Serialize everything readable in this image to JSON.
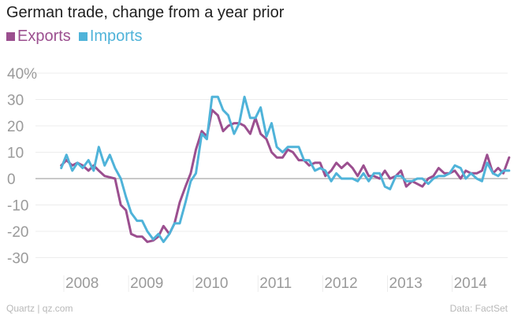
{
  "chart_data": {
    "type": "line",
    "title": "German trade, change from a year prior",
    "xlabel": "",
    "ylabel": "",
    "ylim": [
      -35,
      45
    ],
    "y_ticks": [
      40,
      30,
      20,
      10,
      0,
      -10,
      -20,
      -30
    ],
    "y_tick_labels": [
      "40%",
      "30",
      "20",
      "10",
      "0",
      "-10",
      "-20",
      "-30"
    ],
    "x_range": [
      2007.7,
      2014.99
    ],
    "x_tick_labels": [
      "2008",
      "2009",
      "2010",
      "2011",
      "2012",
      "2013",
      "2014"
    ],
    "grid": true,
    "legend_position": "top-left",
    "series": [
      {
        "name": "Exports",
        "color": "#9b4f8f",
        "x": [
          2007.96,
          2008.04,
          2008.13,
          2008.21,
          2008.29,
          2008.38,
          2008.46,
          2008.54,
          2008.63,
          2008.71,
          2008.79,
          2008.88,
          2008.96,
          2009.04,
          2009.13,
          2009.21,
          2009.29,
          2009.38,
          2009.46,
          2009.54,
          2009.63,
          2009.71,
          2009.79,
          2009.88,
          2009.96,
          2010.04,
          2010.13,
          2010.21,
          2010.29,
          2010.38,
          2010.46,
          2010.54,
          2010.63,
          2010.71,
          2010.79,
          2010.88,
          2010.96,
          2011.04,
          2011.13,
          2011.21,
          2011.29,
          2011.38,
          2011.46,
          2011.54,
          2011.63,
          2011.71,
          2011.79,
          2011.88,
          2011.96,
          2012.04,
          2012.13,
          2012.21,
          2012.29,
          2012.38,
          2012.46,
          2012.54,
          2012.63,
          2012.71,
          2012.79,
          2012.88,
          2012.96,
          2013.04,
          2013.13,
          2013.21,
          2013.29,
          2013.38,
          2013.46,
          2013.54,
          2013.63,
          2013.71,
          2013.79,
          2013.88,
          2013.96,
          2014.04,
          2014.13,
          2014.21,
          2014.29,
          2014.38,
          2014.46,
          2014.54,
          2014.63,
          2014.71,
          2014.79,
          2014.88
        ],
        "values": [
          5,
          7,
          5,
          6,
          5,
          3,
          5,
          3,
          1,
          0.5,
          0,
          -10,
          -12,
          -21,
          -22,
          -22,
          -24,
          -23.5,
          -22,
          -18,
          -21,
          -17,
          -9,
          -3,
          2,
          11,
          18,
          16,
          26,
          24,
          18,
          20,
          21,
          21,
          20,
          17,
          23,
          17,
          15,
          10,
          8,
          8,
          11,
          10,
          7,
          7,
          5,
          6,
          6,
          1,
          3,
          6,
          4,
          6,
          4,
          1,
          5,
          1,
          1,
          0,
          3,
          0,
          1,
          3,
          -3,
          -1,
          -2,
          -3,
          0,
          1,
          4,
          2,
          2,
          3,
          0,
          3,
          2,
          2,
          3,
          9,
          2,
          4,
          2,
          8
        ]
      },
      {
        "name": "Imports",
        "color": "#4fb3d9",
        "x": [
          2007.96,
          2008.04,
          2008.13,
          2008.21,
          2008.29,
          2008.38,
          2008.46,
          2008.54,
          2008.63,
          2008.71,
          2008.79,
          2008.88,
          2008.96,
          2009.04,
          2009.13,
          2009.21,
          2009.29,
          2009.38,
          2009.46,
          2009.54,
          2009.63,
          2009.71,
          2009.79,
          2009.88,
          2009.96,
          2010.04,
          2010.13,
          2010.21,
          2010.29,
          2010.38,
          2010.46,
          2010.54,
          2010.63,
          2010.71,
          2010.79,
          2010.88,
          2010.96,
          2011.04,
          2011.13,
          2011.21,
          2011.29,
          2011.38,
          2011.46,
          2011.54,
          2011.63,
          2011.71,
          2011.79,
          2011.88,
          2011.96,
          2012.04,
          2012.13,
          2012.21,
          2012.29,
          2012.38,
          2012.46,
          2012.54,
          2012.63,
          2012.71,
          2012.79,
          2012.88,
          2012.96,
          2013.04,
          2013.13,
          2013.21,
          2013.29,
          2013.38,
          2013.46,
          2013.54,
          2013.63,
          2013.71,
          2013.79,
          2013.88,
          2013.96,
          2014.04,
          2014.13,
          2014.21,
          2014.29,
          2014.38,
          2014.46,
          2014.54,
          2014.63,
          2014.71,
          2014.79,
          2014.88
        ],
        "values": [
          4,
          9,
          3,
          6,
          4,
          7,
          3,
          12,
          5,
          9,
          4,
          0,
          -7,
          -13,
          -16,
          -16,
          -20,
          -23,
          -21,
          -24,
          -21,
          -17,
          -17,
          -9,
          -1,
          2,
          17,
          15,
          31,
          31,
          26,
          24,
          17,
          21,
          31,
          23,
          23,
          27,
          16,
          21,
          12,
          10,
          12,
          12,
          12,
          7,
          7,
          3,
          4,
          3,
          -1,
          2,
          0,
          0,
          0,
          -1,
          2,
          -1,
          2,
          2,
          -3,
          -4,
          1,
          1,
          -1,
          -1,
          0,
          0,
          -2,
          0,
          1,
          1,
          2,
          5,
          4,
          0,
          2,
          0,
          -1,
          6,
          2,
          1,
          3,
          3
        ]
      }
    ]
  },
  "footer": {
    "source_left": "Quartz | qz.com",
    "source_right": "Data: FactSet"
  }
}
